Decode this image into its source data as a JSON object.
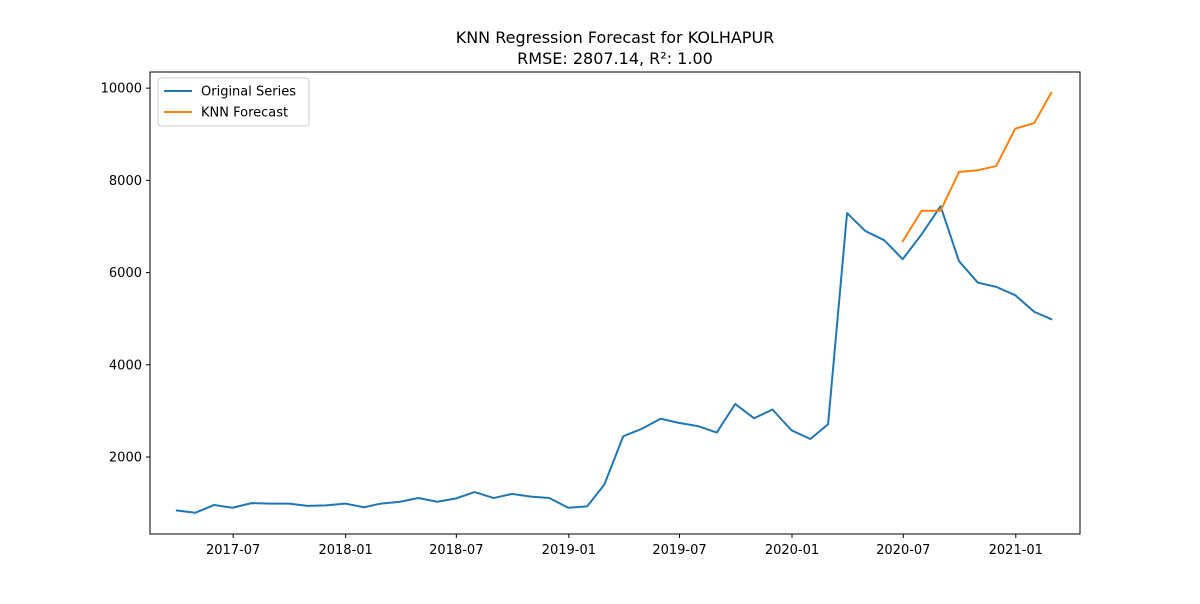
{
  "chart_data": {
    "type": "line",
    "title": "KNN Regression Forecast for KOLHAPUR",
    "subtitle": "RMSE: 2807.14, R²: 1.00",
    "xlabel": "",
    "ylabel": "",
    "x_axis": {
      "kind": "date",
      "range": [
        "2017-02-15",
        "2021-04-16"
      ],
      "ticks": [
        "2017-07-01",
        "2018-01-01",
        "2018-07-01",
        "2019-01-01",
        "2019-07-01",
        "2020-01-01",
        "2020-07-01",
        "2021-01-01"
      ],
      "tick_labels": [
        "2017-07",
        "2018-01",
        "2018-07",
        "2019-01",
        "2019-07",
        "2020-01",
        "2020-07",
        "2021-01"
      ]
    },
    "y_axis": {
      "range": [
        330,
        10350
      ],
      "ticks": [
        2000,
        4000,
        6000,
        8000,
        10000
      ],
      "tick_labels": [
        "2000",
        "4000",
        "6000",
        "8000",
        "10000"
      ]
    },
    "grid": false,
    "legend_position": "top-left",
    "series": [
      {
        "name": "Original Series",
        "color": "#1f77b4",
        "x": [
          "2017-03-31",
          "2017-04-30",
          "2017-05-31",
          "2017-06-30",
          "2017-07-31",
          "2017-08-31",
          "2017-09-30",
          "2017-10-31",
          "2017-11-30",
          "2017-12-31",
          "2018-01-31",
          "2018-02-28",
          "2018-03-31",
          "2018-04-30",
          "2018-05-31",
          "2018-06-30",
          "2018-07-31",
          "2018-08-31",
          "2018-09-30",
          "2018-10-31",
          "2018-11-30",
          "2018-12-31",
          "2019-01-31",
          "2019-02-28",
          "2019-03-31",
          "2019-04-30",
          "2019-05-31",
          "2019-06-30",
          "2019-07-31",
          "2019-08-31",
          "2019-09-30",
          "2019-10-31",
          "2019-11-30",
          "2019-12-31",
          "2020-01-31",
          "2020-02-29",
          "2020-03-31",
          "2020-04-30",
          "2020-05-31",
          "2020-06-30",
          "2020-07-31",
          "2020-08-31",
          "2020-09-30",
          "2020-10-31",
          "2020-11-30",
          "2020-12-31",
          "2021-01-31",
          "2021-02-28"
        ],
        "values": [
          840,
          790,
          960,
          900,
          1000,
          990,
          990,
          940,
          950,
          990,
          910,
          990,
          1030,
          1110,
          1030,
          1100,
          1240,
          1110,
          1200,
          1140,
          1110,
          900,
          930,
          1400,
          2450,
          2610,
          2830,
          2740,
          2670,
          2530,
          3150,
          2840,
          3030,
          2580,
          2390,
          2710,
          7290,
          6900,
          6700,
          6290,
          6830,
          7440,
          6250,
          5780,
          5690,
          5510,
          5150,
          4990
        ]
      },
      {
        "name": "KNN Forecast",
        "color": "#ff7f0e",
        "x": [
          "2020-06-30",
          "2020-07-31",
          "2020-08-31",
          "2020-09-30",
          "2020-10-31",
          "2020-11-30",
          "2020-12-31",
          "2021-01-31",
          "2021-02-28"
        ],
        "values": [
          6680,
          7340,
          7340,
          8180,
          8220,
          8310,
          9120,
          9240,
          9900
        ]
      }
    ]
  }
}
